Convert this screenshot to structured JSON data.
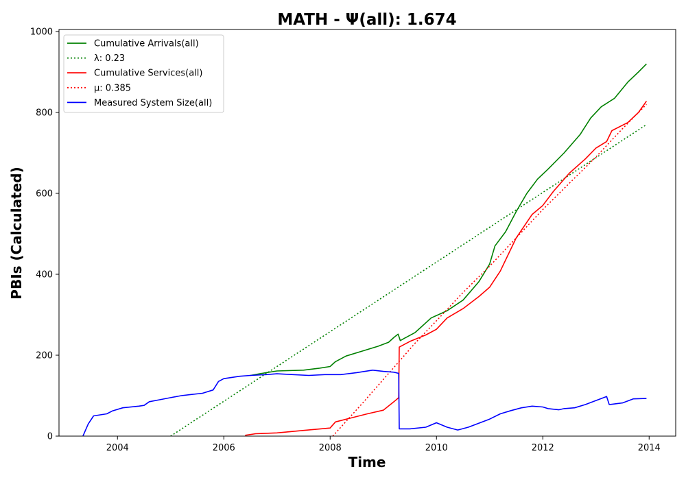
{
  "chart_data": {
    "type": "line",
    "title": "MATH -  Ψ(all): 1.674",
    "xlabel": "Time",
    "ylabel": "PBIs (Calculated)",
    "xlim": [
      2002.9,
      2014.5
    ],
    "ylim": [
      0,
      1005
    ],
    "xticks": [
      2004,
      2006,
      2008,
      2010,
      2012,
      2014
    ],
    "yticks": [
      0,
      200,
      400,
      600,
      800,
      1000
    ],
    "grid": false,
    "legend_position": "top-left",
    "series": [
      {
        "name": "Cumulative Arrivals(all)",
        "color": "#008000",
        "style": "solid",
        "points": [
          [
            2006.5,
            150
          ],
          [
            2006.8,
            157
          ],
          [
            2007.0,
            161
          ],
          [
            2007.5,
            163
          ],
          [
            2007.8,
            168
          ],
          [
            2008.0,
            172
          ],
          [
            2008.1,
            184
          ],
          [
            2008.3,
            198
          ],
          [
            2008.6,
            210
          ],
          [
            2008.9,
            222
          ],
          [
            2009.1,
            232
          ],
          [
            2009.2,
            244
          ],
          [
            2009.28,
            252
          ],
          [
            2009.32,
            236
          ],
          [
            2009.4,
            242
          ],
          [
            2009.6,
            256
          ],
          [
            2009.9,
            292
          ],
          [
            2010.2,
            310
          ],
          [
            2010.5,
            336
          ],
          [
            2010.8,
            382
          ],
          [
            2011.0,
            425
          ],
          [
            2011.1,
            470
          ],
          [
            2011.3,
            505
          ],
          [
            2011.5,
            555
          ],
          [
            2011.7,
            600
          ],
          [
            2011.9,
            635
          ],
          [
            2012.1,
            660
          ],
          [
            2012.4,
            700
          ],
          [
            2012.7,
            745
          ],
          [
            2012.9,
            786
          ],
          [
            2013.1,
            814
          ],
          [
            2013.35,
            835
          ],
          [
            2013.6,
            875
          ],
          [
            2013.8,
            900
          ],
          [
            2013.95,
            920
          ]
        ]
      },
      {
        "name": "λ: 0.23",
        "color": "#008000",
        "style": "dotted",
        "points": [
          [
            2005.0,
            0
          ],
          [
            2013.95,
            770
          ]
        ]
      },
      {
        "name": "Cumulative Services(all)",
        "color": "#ff0000",
        "style": "solid",
        "points": [
          [
            2006.4,
            2
          ],
          [
            2006.6,
            6
          ],
          [
            2007.0,
            8
          ],
          [
            2007.5,
            14
          ],
          [
            2008.0,
            20
          ],
          [
            2008.1,
            35
          ],
          [
            2008.4,
            45
          ],
          [
            2008.7,
            55
          ],
          [
            2009.0,
            64
          ],
          [
            2009.2,
            85
          ],
          [
            2009.29,
            95
          ],
          [
            2009.3,
            220
          ],
          [
            2009.5,
            234
          ],
          [
            2009.8,
            250
          ],
          [
            2010.0,
            264
          ],
          [
            2010.2,
            292
          ],
          [
            2010.5,
            315
          ],
          [
            2010.8,
            345
          ],
          [
            2011.0,
            368
          ],
          [
            2011.2,
            408
          ],
          [
            2011.5,
            490
          ],
          [
            2011.8,
            548
          ],
          [
            2012.0,
            570
          ],
          [
            2012.2,
            605
          ],
          [
            2012.5,
            650
          ],
          [
            2012.8,
            685
          ],
          [
            2013.0,
            712
          ],
          [
            2013.2,
            728
          ],
          [
            2013.3,
            755
          ],
          [
            2013.6,
            775
          ],
          [
            2013.8,
            800
          ],
          [
            2013.95,
            828
          ]
        ]
      },
      {
        "name": "μ: 0.385",
        "color": "#ff0000",
        "style": "dotted",
        "points": [
          [
            2008.05,
            0
          ],
          [
            2008.6,
            80
          ],
          [
            2009.2,
            170
          ],
          [
            2009.6,
            230
          ],
          [
            2010.0,
            285
          ],
          [
            2010.5,
            355
          ],
          [
            2011.0,
            420
          ],
          [
            2011.5,
            490
          ],
          [
            2012.0,
            560
          ],
          [
            2012.5,
            625
          ],
          [
            2013.0,
            690
          ],
          [
            2013.5,
            760
          ],
          [
            2013.95,
            820
          ]
        ]
      },
      {
        "name": "Measured System Size(all)",
        "color": "#0000ff",
        "style": "solid",
        "points": [
          [
            2003.35,
            0
          ],
          [
            2003.45,
            30
          ],
          [
            2003.55,
            50
          ],
          [
            2003.8,
            55
          ],
          [
            2003.9,
            62
          ],
          [
            2004.1,
            70
          ],
          [
            2004.4,
            74
          ],
          [
            2004.5,
            76
          ],
          [
            2004.6,
            85
          ],
          [
            2004.8,
            90
          ],
          [
            2005.0,
            95
          ],
          [
            2005.2,
            100
          ],
          [
            2005.4,
            103
          ],
          [
            2005.6,
            106
          ],
          [
            2005.8,
            114
          ],
          [
            2005.9,
            135
          ],
          [
            2006.0,
            142
          ],
          [
            2006.3,
            148
          ],
          [
            2006.5,
            150
          ],
          [
            2006.8,
            152
          ],
          [
            2007.0,
            154
          ],
          [
            2007.3,
            152
          ],
          [
            2007.6,
            150
          ],
          [
            2007.9,
            152
          ],
          [
            2008.2,
            152
          ],
          [
            2008.5,
            157
          ],
          [
            2008.8,
            163
          ],
          [
            2009.0,
            160
          ],
          [
            2009.2,
            158
          ],
          [
            2009.29,
            155
          ],
          [
            2009.3,
            18
          ],
          [
            2009.5,
            18
          ],
          [
            2009.8,
            22
          ],
          [
            2010.0,
            33
          ],
          [
            2010.2,
            22
          ],
          [
            2010.4,
            15
          ],
          [
            2010.6,
            22
          ],
          [
            2010.8,
            32
          ],
          [
            2011.0,
            42
          ],
          [
            2011.2,
            55
          ],
          [
            2011.4,
            63
          ],
          [
            2011.6,
            70
          ],
          [
            2011.8,
            74
          ],
          [
            2012.0,
            72
          ],
          [
            2012.1,
            68
          ],
          [
            2012.3,
            65
          ],
          [
            2012.4,
            68
          ],
          [
            2012.6,
            70
          ],
          [
            2012.8,
            78
          ],
          [
            2013.0,
            88
          ],
          [
            2013.2,
            98
          ],
          [
            2013.25,
            78
          ],
          [
            2013.5,
            82
          ],
          [
            2013.7,
            92
          ],
          [
            2013.95,
            93
          ]
        ]
      }
    ]
  }
}
